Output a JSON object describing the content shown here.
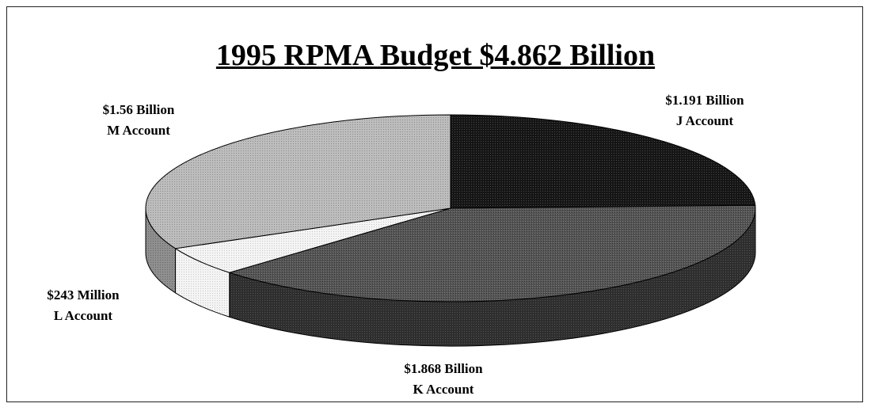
{
  "chart_data": {
    "type": "pie",
    "title": "1995 RPMA Budget   $4.862 Billion",
    "slices": [
      {
        "account": "J Account",
        "amount_label": "$1.191 Billion",
        "value": 1191,
        "color": "#151515"
      },
      {
        "account": "K Account",
        "amount_label": "$1.868 Billion",
        "value": 1868,
        "color": "#5a5a5a"
      },
      {
        "account": "L Account",
        "amount_label": "$243 Million",
        "value": 243,
        "color": "#eeeeee"
      },
      {
        "account": "M Account",
        "amount_label": "$1.56 Billion",
        "value": 1560,
        "color": "#b4b4b4"
      }
    ],
    "units": "millions of dollars",
    "style": "3d-pie"
  }
}
